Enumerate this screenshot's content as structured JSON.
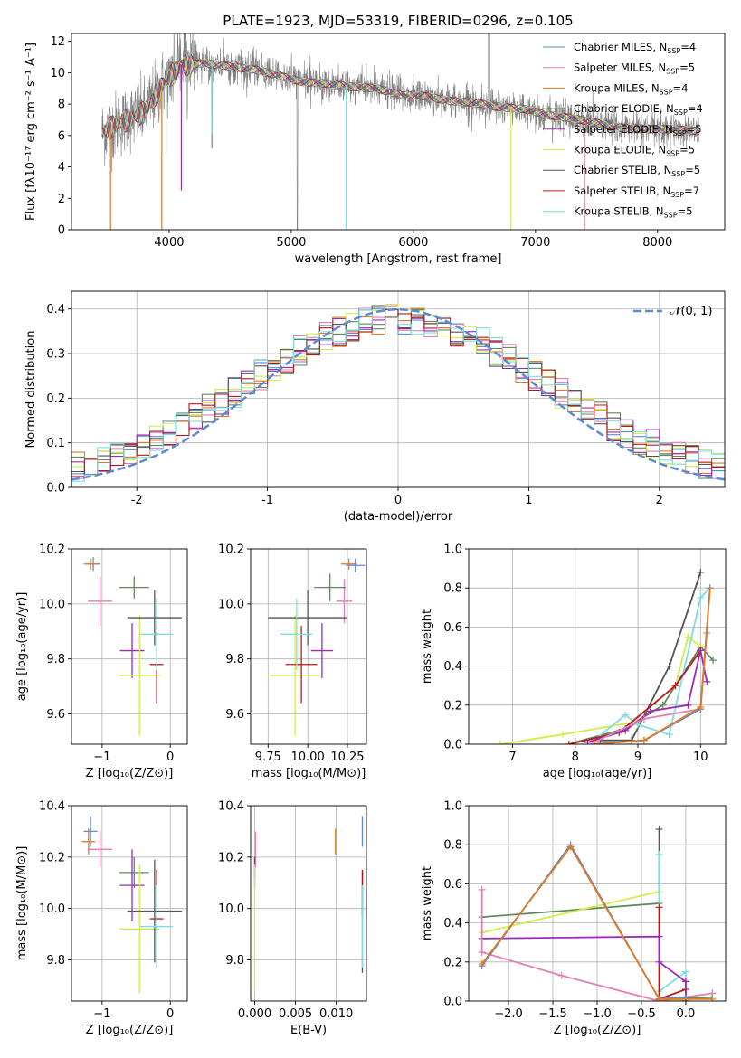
{
  "chart_data": [
    {
      "id": "spectrum",
      "type": "line",
      "title": "PLATE=1923, MJD=53319, FIBERID=0296, z=0.105",
      "xlabel": "wavelength [Angstrom, rest frame]",
      "ylabel": "Flux [fλ10⁻¹⁷ erg cm⁻² s⁻¹ A⁻¹]",
      "xlim": [
        3200,
        8550
      ],
      "ylim": [
        0,
        12.5
      ],
      "xticks": [
        4000,
        5000,
        6000,
        7000,
        8000
      ],
      "yticks": [
        0,
        2,
        4,
        6,
        8,
        10,
        12
      ],
      "grid": false,
      "legend_position": "top-right",
      "data_x": [
        3450,
        3600,
        3800,
        3950,
        4100,
        4300,
        4500,
        4700,
        4900,
        5100,
        5300,
        5500,
        5700,
        5900,
        6100,
        6300,
        6500,
        6700,
        6900,
        7100,
        7300,
        7500,
        7700,
        7900,
        8100,
        8300
      ],
      "data_y": [
        6.2,
        6.8,
        7.5,
        9.3,
        10.5,
        10.6,
        10.4,
        10.2,
        9.8,
        9.4,
        9.3,
        9.1,
        9.0,
        8.6,
        8.5,
        8.2,
        8.1,
        7.8,
        7.7,
        7.3,
        7.1,
        6.8,
        6.5,
        6.4,
        6.4,
        6.3
      ],
      "series": [
        {
          "name": "Chabrier MILES, N",
          "sub": "SSP",
          "suffix": "=4",
          "color": "#5b8bd6"
        },
        {
          "name": "Salpeter MILES, N",
          "sub": "SSP",
          "suffix": "=5",
          "color": "#e27fb3"
        },
        {
          "name": "Kroupa MILES, N",
          "sub": "SSP",
          "suffix": "=4",
          "color": "#e07a25"
        },
        {
          "name": "Chabrier ELODIE, N",
          "sub": "SSP",
          "suffix": "=4",
          "color": "#5f8a5c"
        },
        {
          "name": "Salpeter ELODIE, N",
          "sub": "SSP",
          "suffix": "=5",
          "color": "#9a2bb5"
        },
        {
          "name": "Kroupa ELODIE, N",
          "sub": "SSP",
          "suffix": "=5",
          "color": "#d2ec4c"
        },
        {
          "name": "Chabrier STELIB, N",
          "sub": "SSP",
          "suffix": "=5",
          "color": "#555555"
        },
        {
          "name": "Salpeter STELIB, N",
          "sub": "SSP",
          "suffix": "=7",
          "color": "#b81a1a"
        },
        {
          "name": "Kroupa STELIB, N",
          "sub": "SSP",
          "suffix": "=5",
          "color": "#7fdde0"
        }
      ],
      "model_y": {
        "Chabrier MILES": [
          6.3,
          6.9,
          7.6,
          9.4,
          10.4,
          10.5,
          10.3,
          10.1,
          9.7,
          9.4,
          9.3,
          9.1,
          8.9,
          8.6,
          8.5,
          8.2,
          8.0,
          7.8,
          7.6,
          7.3,
          7.1,
          6.8,
          6.5,
          6.4,
          6.4,
          6.3
        ],
        "Kroupa STELIB": [
          6.6,
          7.1,
          7.7,
          9.7,
          10.5,
          10.6,
          10.3,
          10.0,
          9.6,
          9.4,
          9.2,
          9.0,
          8.9,
          8.6,
          8.4,
          8.1,
          8.0,
          7.7,
          7.6,
          7.3,
          7.0,
          6.7,
          6.5,
          6.4,
          6.4,
          6.3
        ]
      }
    },
    {
      "id": "residuals",
      "type": "histogram",
      "xlabel": "(data-model)/error",
      "ylabel": "Normed distribution",
      "xlim": [
        -2.5,
        2.5
      ],
      "ylim": [
        0,
        0.44
      ],
      "xticks": [
        -2,
        -1,
        0,
        1,
        2
      ],
      "yticks": [
        0.0,
        0.1,
        0.2,
        0.3,
        0.4
      ],
      "grid": true,
      "legend_label": "𝒩(0, 1)",
      "legend_position": "top-right",
      "bin_width": 0.1,
      "bin_start": -2.5,
      "gaussian_color": "#5b8bd6"
    },
    {
      "id": "age-vs-Z",
      "type": "errorbar",
      "xlabel": "Z [log₁₀(Z/Z⊙)]",
      "ylabel": "age  [log₁₀(age/yr)]",
      "xlim": [
        -1.45,
        0.25
      ],
      "ylim": [
        9.49,
        10.2
      ],
      "xticks": [
        -1,
        0
      ],
      "xtick_labels": [
        "−1",
        "0"
      ],
      "yticks": [
        9.6,
        9.8,
        10.0,
        10.2
      ],
      "grid": true,
      "points": [
        {
          "x": -1.13,
          "y": 10.145,
          "xe": 0.1,
          "ye": 0.025,
          "c": "#5b8bd6"
        },
        {
          "x": -1.03,
          "y": 10.01,
          "xe": 0.18,
          "ye": 0.09,
          "c": "#e27fb3"
        },
        {
          "x": -1.17,
          "y": 10.145,
          "xe": 0.1,
          "ye": 0.02,
          "c": "#e07a25"
        },
        {
          "x": -0.53,
          "y": 10.06,
          "xe": 0.22,
          "ye": 0.04,
          "c": "#5f8a5c"
        },
        {
          "x": -0.56,
          "y": 9.83,
          "xe": 0.18,
          "ye": 0.1,
          "c": "#9a2bb5"
        },
        {
          "x": -0.45,
          "y": 9.74,
          "xe": 0.3,
          "ye": 0.22,
          "c": "#d2ec4c"
        },
        {
          "x": -0.23,
          "y": 9.95,
          "xe": 0.4,
          "ye": 0.1,
          "c": "#555555"
        },
        {
          "x": -0.2,
          "y": 9.78,
          "xe": 0.1,
          "ye": 0.14,
          "c": "#b81a1a"
        },
        {
          "x": -0.2,
          "y": 9.89,
          "xe": 0.24,
          "ye": 0.13,
          "c": "#7fdde0"
        }
      ]
    },
    {
      "id": "age-vs-mass",
      "type": "errorbar",
      "xlabel": "mass [log₁₀(M/M⊙)]",
      "ylabel": "",
      "xlim": [
        9.64,
        10.37
      ],
      "ylim": [
        9.49,
        10.2
      ],
      "xticks": [
        9.75,
        10.0,
        10.25
      ],
      "xtick_labels": [
        "9.75",
        "10.00",
        "10.25"
      ],
      "yticks": [
        9.6,
        9.8,
        10.0,
        10.2
      ],
      "grid": true,
      "points": [
        {
          "x": 10.3,
          "y": 10.14,
          "xe": 0.06,
          "ye": 0.025,
          "c": "#5b8bd6"
        },
        {
          "x": 10.23,
          "y": 10.01,
          "xe": 0.05,
          "ye": 0.08,
          "c": "#e27fb3"
        },
        {
          "x": 10.26,
          "y": 10.145,
          "xe": 0.05,
          "ye": 0.02,
          "c": "#e07a25"
        },
        {
          "x": 10.14,
          "y": 10.06,
          "xe": 0.1,
          "ye": 0.05,
          "c": "#5f8a5c"
        },
        {
          "x": 10.09,
          "y": 9.83,
          "xe": 0.07,
          "ye": 0.1,
          "c": "#9a2bb5"
        },
        {
          "x": 9.92,
          "y": 9.74,
          "xe": 0.16,
          "ye": 0.22,
          "c": "#d2ec4c"
        },
        {
          "x": 10.0,
          "y": 9.95,
          "xe": 0.25,
          "ye": 0.1,
          "c": "#555555"
        },
        {
          "x": 9.96,
          "y": 9.78,
          "xe": 0.1,
          "ye": 0.14,
          "c": "#b81a1a"
        },
        {
          "x": 9.93,
          "y": 9.89,
          "xe": 0.1,
          "ye": 0.13,
          "c": "#7fdde0"
        }
      ]
    },
    {
      "id": "massweight-vs-age",
      "type": "line",
      "xlabel": "age  [log₁₀(age/yr)]",
      "ylabel": "mass weight",
      "xlim": [
        6.3,
        10.4
      ],
      "ylim": [
        0,
        1.0
      ],
      "xticks": [
        7,
        8,
        9,
        10
      ],
      "yticks": [
        0.0,
        0.2,
        0.4,
        0.6,
        0.8,
        1.0
      ],
      "grid": true,
      "series": [
        {
          "c": "#5f8a5c",
          "x": [
            8.0,
            8.8,
            9.4,
            10.0,
            10.2
          ],
          "y": [
            0.01,
            0.08,
            0.2,
            0.5,
            0.43
          ]
        },
        {
          "c": "#555555",
          "x": [
            8.4,
            8.9,
            9.5,
            10.0
          ],
          "y": [
            0.02,
            0.02,
            0.4,
            0.88
          ]
        },
        {
          "c": "#d2ec4c",
          "x": [
            6.8,
            7.8,
            8.9,
            9.6,
            9.8,
            10.0
          ],
          "y": [
            0.0,
            0.05,
            0.11,
            0.3,
            0.55,
            0.5
          ]
        },
        {
          "c": "#7fdde0",
          "x": [
            8.3,
            8.8,
            9.0,
            9.5,
            10.0,
            10.15
          ],
          "y": [
            0.02,
            0.15,
            0.1,
            0.05,
            0.75,
            0.8
          ]
        },
        {
          "c": "#b81a1a",
          "x": [
            7.9,
            8.7,
            9.6,
            10.0
          ],
          "y": [
            0.0,
            0.06,
            0.3,
            0.48
          ]
        },
        {
          "c": "#9a2bb5",
          "x": [
            8.2,
            8.8,
            9.2,
            9.8,
            10.0,
            10.1
          ],
          "y": [
            0.01,
            0.07,
            0.17,
            0.2,
            0.48,
            0.32
          ]
        },
        {
          "c": "#e27fb3",
          "x": [
            8.3,
            9.1,
            10.0,
            10.1
          ],
          "y": [
            0.01,
            0.13,
            0.18,
            0.57
          ]
        },
        {
          "c": "#5b8bd6",
          "x": [
            8.3,
            9.1,
            10.0,
            10.15
          ],
          "y": [
            0.0,
            0.02,
            0.18,
            0.8
          ]
        },
        {
          "c": "#e07a25",
          "x": [
            8.3,
            9.1,
            10.0,
            10.15
          ],
          "y": [
            0.0,
            0.02,
            0.19,
            0.79
          ]
        }
      ]
    },
    {
      "id": "mass-vs-Z",
      "type": "errorbar",
      "xlabel": "Z [log₁₀(Z/Z⊙)]",
      "ylabel": "mass [log₁₀(M/M⊙)]",
      "xlim": [
        -1.45,
        0.25
      ],
      "ylim": [
        9.64,
        10.4
      ],
      "xticks": [
        -1,
        0
      ],
      "xtick_labels": [
        "−1",
        "0"
      ],
      "yticks": [
        9.8,
        10.0,
        10.2,
        10.4
      ],
      "grid": true,
      "points": [
        {
          "x": -1.17,
          "y": 10.3,
          "xe": 0.1,
          "ye": 0.06,
          "c": "#5b8bd6"
        },
        {
          "x": -1.03,
          "y": 10.23,
          "xe": 0.18,
          "ye": 0.07,
          "c": "#e27fb3"
        },
        {
          "x": -1.2,
          "y": 10.26,
          "xe": 0.1,
          "ye": 0.05,
          "c": "#e07a25"
        },
        {
          "x": -0.53,
          "y": 10.14,
          "xe": 0.22,
          "ye": 0.06,
          "c": "#5f8a5c"
        },
        {
          "x": -0.56,
          "y": 10.09,
          "xe": 0.18,
          "ye": 0.14,
          "c": "#9a2bb5"
        },
        {
          "x": -0.45,
          "y": 9.92,
          "xe": 0.3,
          "ye": 0.25,
          "c": "#d2ec4c"
        },
        {
          "x": -0.23,
          "y": 9.99,
          "xe": 0.4,
          "ye": 0.2,
          "c": "#555555"
        },
        {
          "x": -0.2,
          "y": 9.96,
          "xe": 0.1,
          "ye": 0.19,
          "c": "#b81a1a"
        },
        {
          "x": -0.2,
          "y": 9.93,
          "xe": 0.24,
          "ye": 0.16,
          "c": "#7fdde0"
        }
      ]
    },
    {
      "id": "mass-vs-ebv",
      "type": "errorbar",
      "xlabel": "E(B-V)",
      "ylabel": "",
      "xlim": [
        -0.0005,
        0.0137
      ],
      "ylim": [
        9.64,
        10.4
      ],
      "xticks": [
        0.0,
        0.005,
        0.01
      ],
      "xtick_labels": [
        "0.000",
        "0.005",
        "0.010"
      ],
      "yticks": [
        9.8,
        10.0,
        10.2,
        10.4
      ],
      "grid": true,
      "points": [
        {
          "x": 0.0132,
          "y": 10.3,
          "xe": 0,
          "ye": 0.06,
          "c": "#5b8bd6"
        },
        {
          "x": 0.0001,
          "y": 10.23,
          "xe": 0,
          "ye": 0.07,
          "c": "#e27fb3"
        },
        {
          "x": 0.0099,
          "y": 10.26,
          "xe": 0,
          "ye": 0.05,
          "c": "#e07a25"
        },
        {
          "x": 0.0,
          "y": 10.14,
          "xe": 0,
          "ye": 0.06,
          "c": "#5f8a5c"
        },
        {
          "x": 0.0,
          "y": 10.16,
          "xe": 0,
          "ye": 0.04,
          "c": "#9a2bb5"
        },
        {
          "x": 0.0,
          "y": 9.92,
          "xe": 0,
          "ye": 0.25,
          "c": "#d2ec4c"
        },
        {
          "x": 0.0132,
          "y": 9.95,
          "xe": 0,
          "ye": 0.2,
          "c": "#555555"
        },
        {
          "x": 0.0132,
          "y": 10.06,
          "xe": 0,
          "ye": 0.09,
          "c": "#b81a1a"
        },
        {
          "x": 0.0132,
          "y": 9.93,
          "xe": 0,
          "ye": 0.16,
          "c": "#7fdde0"
        }
      ]
    },
    {
      "id": "massweight-vs-Z",
      "type": "line",
      "xlabel": "Z [log₁₀(Z/Z⊙)]",
      "ylabel": "mass weight",
      "xlim": [
        -2.45,
        0.45
      ],
      "ylim": [
        0,
        1.0
      ],
      "xticks": [
        -2.0,
        -1.5,
        -1.0,
        -0.5,
        0.0
      ],
      "xtick_labels": [
        "−2.0",
        "−1.5",
        "−1.0",
        "−0.5",
        "0.0"
      ],
      "yticks": [
        0.0,
        0.2,
        0.4,
        0.6,
        0.8,
        1.0
      ],
      "grid": true,
      "series": [
        {
          "c": "#5f8a5c",
          "x": [
            -2.3,
            -0.3,
            -0.3,
            0.3
          ],
          "y": [
            0.43,
            0.5,
            0.01,
            0.02
          ]
        },
        {
          "c": "#555555",
          "x": [
            -0.3,
            -0.3,
            0.0,
            0.0
          ],
          "y": [
            0.88,
            0.01,
            0.02,
            0.1
          ]
        },
        {
          "c": "#d2ec4c",
          "x": [
            -2.3,
            -0.3,
            -0.3,
            0.0
          ],
          "y": [
            0.35,
            0.56,
            0.01,
            0.0
          ]
        },
        {
          "c": "#7fdde0",
          "x": [
            -0.3,
            -0.3,
            0.0,
            0.0
          ],
          "y": [
            0.75,
            0.05,
            0.15,
            0.0
          ]
        },
        {
          "c": "#b81a1a",
          "x": [
            -0.3,
            -0.3,
            0.0,
            0.0
          ],
          "y": [
            0.48,
            0.01,
            0.06,
            0.0
          ]
        },
        {
          "c": "#9a2bb5",
          "x": [
            -2.3,
            -0.3,
            -0.3,
            0.0,
            0.0
          ],
          "y": [
            0.32,
            0.33,
            0.2,
            0.1,
            0.0
          ]
        },
        {
          "c": "#e27fb3",
          "x": [
            -2.3,
            -2.3,
            -1.4,
            -0.3,
            0.3
          ],
          "y": [
            0.57,
            0.25,
            0.13,
            0.0,
            0.04
          ]
        },
        {
          "c": "#5b8bd6",
          "x": [
            -2.3,
            -1.3,
            -0.3,
            0.0
          ],
          "y": [
            0.18,
            0.8,
            0.01,
            0.02
          ]
        },
        {
          "c": "#e07a25",
          "x": [
            -2.3,
            -1.3,
            -0.3,
            0.3
          ],
          "y": [
            0.19,
            0.79,
            0.01,
            0.01
          ]
        }
      ]
    }
  ]
}
